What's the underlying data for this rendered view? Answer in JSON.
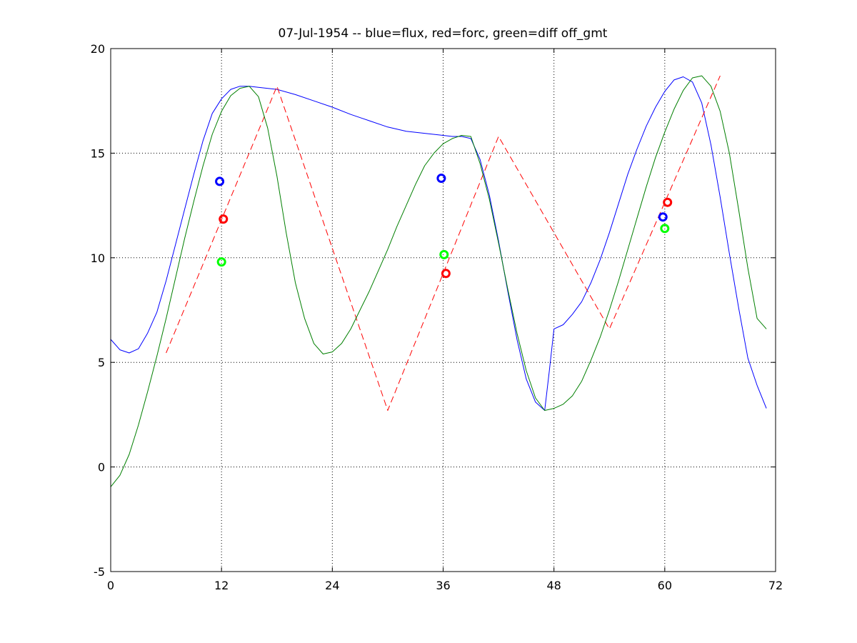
{
  "chart_data": {
    "type": "line",
    "title": "07-Jul-1954 -- blue=flux, red=forc, green=diff off_gmt",
    "xlabel": "",
    "ylabel": "",
    "xlim": [
      0,
      72
    ],
    "ylim": [
      -5,
      20
    ],
    "xticks": [
      0,
      12,
      24,
      36,
      48,
      60,
      72
    ],
    "yticks": [
      -5,
      0,
      5,
      10,
      15,
      20
    ],
    "grid": "dotted",
    "colors": {
      "flux": "#0000ff",
      "forc": "#ff0000",
      "diff": "#007f00",
      "diff_marker": "#00ff00"
    },
    "series": [
      {
        "style": "solid",
        "color": "#0000ff",
        "x": [
          0,
          1,
          2,
          3,
          4,
          5,
          6,
          7,
          8,
          9,
          10,
          11,
          12,
          13,
          14,
          15,
          16,
          18,
          20,
          22,
          24,
          26,
          28,
          30,
          32,
          34,
          36,
          37,
          38,
          39,
          40,
          41,
          42,
          43,
          44,
          45,
          46,
          47,
          47.5,
          48,
          49,
          50,
          51,
          52,
          53,
          54,
          55,
          56,
          57,
          58,
          59,
          60,
          61,
          62,
          63,
          64,
          65,
          66,
          67,
          68,
          69,
          70,
          71
        ],
        "y": [
          6.1,
          5.6,
          5.45,
          5.65,
          6.4,
          7.4,
          8.9,
          10.6,
          12.3,
          14.0,
          15.6,
          16.9,
          17.6,
          18.05,
          18.2,
          18.2,
          18.15,
          18.05,
          17.8,
          17.5,
          17.2,
          16.85,
          16.55,
          16.25,
          16.05,
          15.95,
          15.85,
          15.8,
          15.8,
          15.7,
          14.7,
          13.0,
          10.8,
          8.4,
          6.1,
          4.2,
          3.1,
          2.7,
          4.6,
          6.6,
          6.8,
          7.3,
          7.9,
          8.8,
          9.9,
          11.2,
          12.6,
          14.0,
          15.2,
          16.3,
          17.2,
          17.95,
          18.5,
          18.65,
          18.4,
          17.4,
          15.4,
          12.9,
          10.2,
          7.6,
          5.2,
          3.9,
          2.8
        ]
      },
      {
        "style": "dashed",
        "color": "#ff0000",
        "x": [
          6,
          18,
          30,
          42,
          54,
          66
        ],
        "y": [
          5.45,
          18.2,
          2.7,
          15.8,
          6.6,
          18.7
        ]
      },
      {
        "style": "solid",
        "color": "#007f00",
        "x": [
          0,
          1,
          2,
          3,
          4,
          5,
          6,
          7,
          8,
          9,
          10,
          11,
          12,
          13,
          14,
          15,
          16,
          17,
          18,
          19,
          20,
          21,
          22,
          23,
          24,
          25,
          26,
          27,
          28,
          29,
          30,
          31,
          32,
          33,
          34,
          35,
          36,
          37,
          38,
          39,
          40,
          41,
          42,
          43,
          44,
          45,
          46,
          47,
          48,
          49,
          50,
          51,
          52,
          53,
          54,
          55,
          56,
          57,
          58,
          59,
          60,
          61,
          62,
          63,
          64,
          65,
          66,
          67,
          68,
          69,
          70,
          71
        ],
        "y": [
          -0.95,
          -0.4,
          0.6,
          2.0,
          3.6,
          5.3,
          7.1,
          9.0,
          10.9,
          12.7,
          14.4,
          15.9,
          17.0,
          17.75,
          18.1,
          18.2,
          17.7,
          16.2,
          13.9,
          11.2,
          8.8,
          7.1,
          5.9,
          5.4,
          5.5,
          5.9,
          6.6,
          7.5,
          8.4,
          9.4,
          10.4,
          11.5,
          12.5,
          13.5,
          14.4,
          15.0,
          15.45,
          15.7,
          15.85,
          15.8,
          14.5,
          12.8,
          10.7,
          8.5,
          6.4,
          4.6,
          3.3,
          2.7,
          2.8,
          3.0,
          3.4,
          4.1,
          5.1,
          6.2,
          7.5,
          8.9,
          10.4,
          11.9,
          13.4,
          14.8,
          16.0,
          17.1,
          18.0,
          18.6,
          18.7,
          18.2,
          17.0,
          15.0,
          12.3,
          9.5,
          7.1,
          6.6
        ]
      }
    ],
    "markers": [
      {
        "x": 11.8,
        "y": 13.65,
        "color": "#0000ff"
      },
      {
        "x": 12.2,
        "y": 11.85,
        "color": "#ff0000"
      },
      {
        "x": 12.0,
        "y": 9.8,
        "color": "#00ff00"
      },
      {
        "x": 35.8,
        "y": 13.8,
        "color": "#0000ff"
      },
      {
        "x": 36.1,
        "y": 10.15,
        "color": "#00ff00"
      },
      {
        "x": 36.3,
        "y": 9.25,
        "color": "#ff0000"
      },
      {
        "x": 59.8,
        "y": 11.95,
        "color": "#0000ff"
      },
      {
        "x": 60.3,
        "y": 12.65,
        "color": "#ff0000"
      },
      {
        "x": 60.0,
        "y": 11.4,
        "color": "#00ff00"
      }
    ]
  }
}
